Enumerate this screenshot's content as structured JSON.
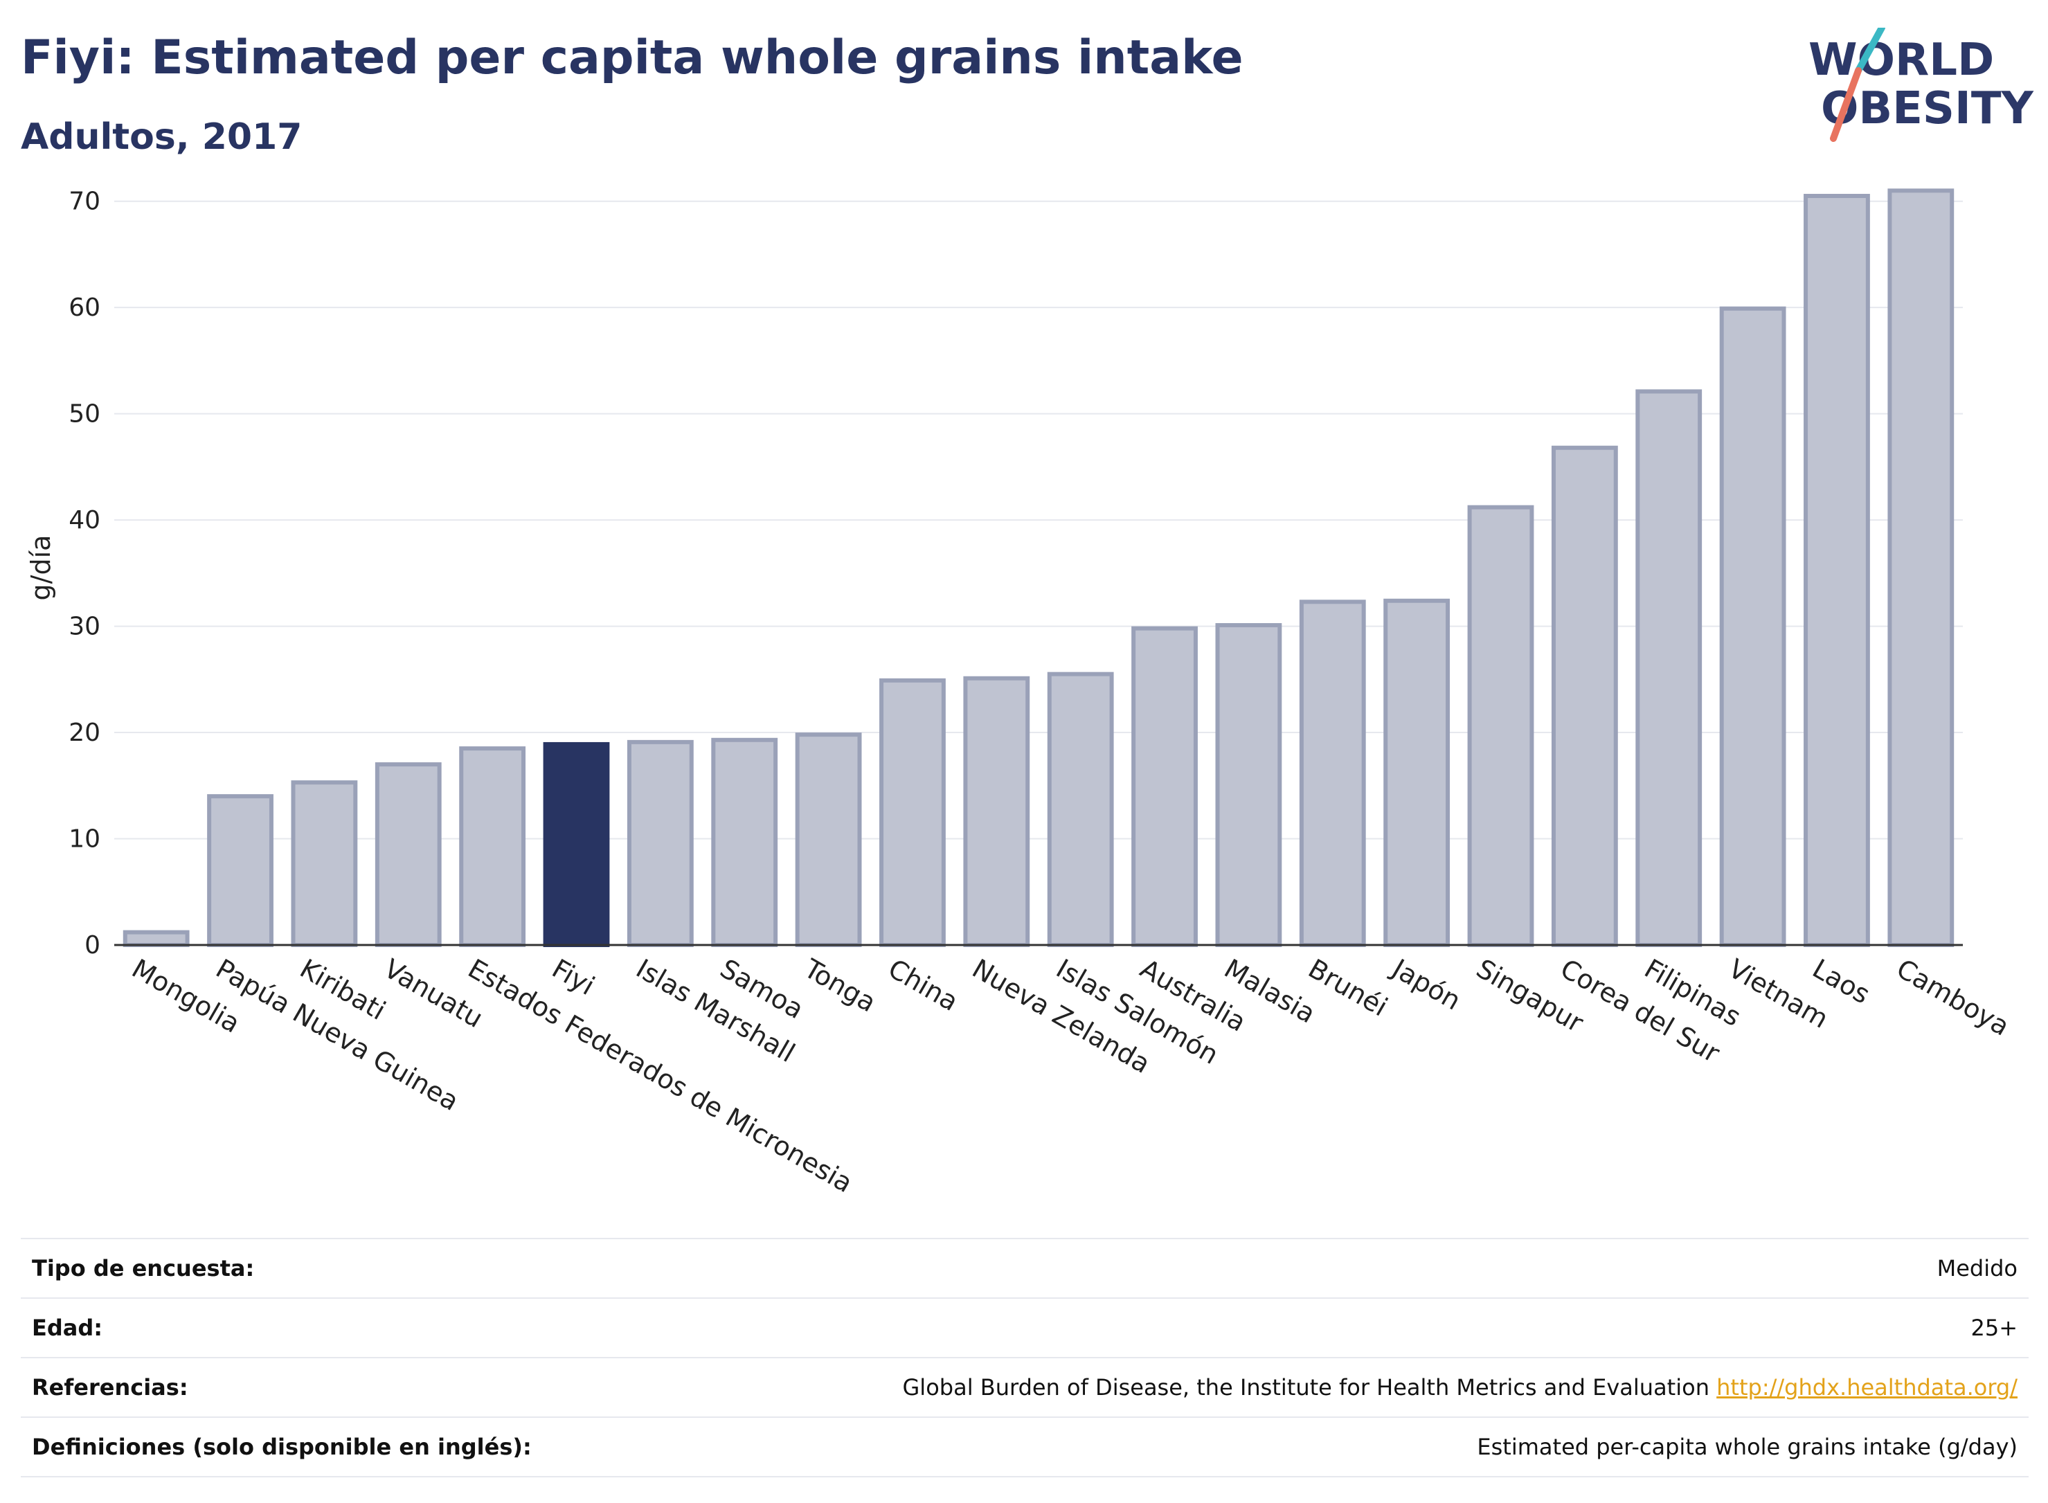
{
  "header": {
    "title": "Fiyi: Estimated per capita whole grains intake",
    "subtitle": "Adultos, 2017"
  },
  "logo": {
    "line1": "WORLD",
    "line2": "OBESITY"
  },
  "colors": {
    "bar": "#bfc3d1",
    "bar_border": "#9aa1b8",
    "highlight": "#283462",
    "axis": "#333333",
    "grid": "#e6e8ee"
  },
  "chart_data": {
    "type": "bar",
    "ylabel": "g/día",
    "ylim": [
      0,
      72
    ],
    "yticks": [
      0,
      10,
      20,
      30,
      40,
      50,
      60,
      70
    ],
    "grid": true,
    "highlight": "Fiyi",
    "categories": [
      "Mongolia",
      "Papúa Nueva Guinea",
      "Kiribati",
      "Vanuatu",
      "Estados Federados de Micronesia",
      "Fiyi",
      "Islas Marshall",
      "Samoa",
      "Tonga",
      "China",
      "Nueva Zelanda",
      "Islas Salomón",
      "Australia",
      "Malasia",
      "Brunéi",
      "Japón",
      "Singapur",
      "Corea del Sur",
      "Filipinas",
      "Vietnam",
      "Laos",
      "Camboya"
    ],
    "values": [
      1.2,
      14.0,
      15.3,
      17.0,
      18.5,
      18.9,
      19.1,
      19.3,
      19.8,
      24.9,
      25.1,
      25.5,
      29.8,
      30.1,
      32.3,
      32.4,
      41.2,
      46.8,
      52.1,
      59.9,
      70.5,
      71.0
    ]
  },
  "info": {
    "survey_label": "Tipo de encuesta:",
    "survey_value": "Medido",
    "age_label": "Edad:",
    "age_value": "25+",
    "ref_label": "Referencias:",
    "ref_value": "Global Burden of Disease, the Institute for Health Metrics and Evaluation",
    "ref_link": "http://ghdx.healthdata.org/",
    "def_label": "Definiciones (solo disponible en inglés):",
    "def_value": "Estimated per-capita whole grains intake (g/day)"
  }
}
